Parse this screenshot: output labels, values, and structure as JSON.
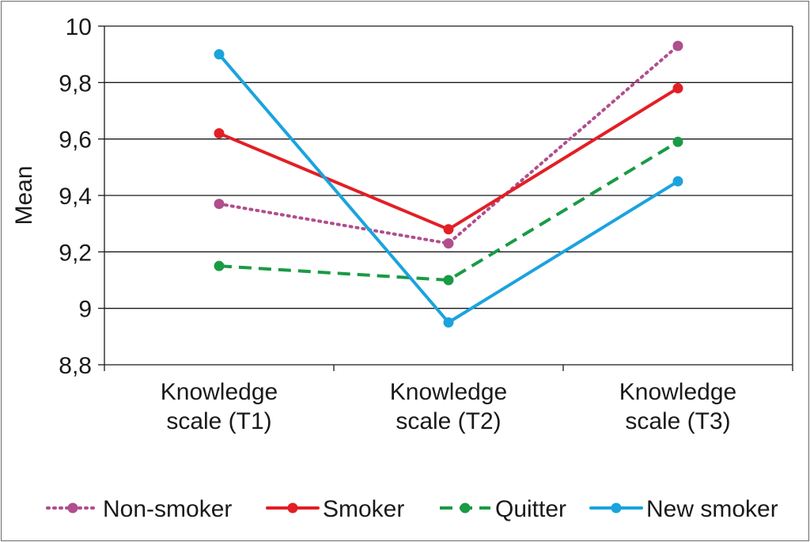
{
  "chart_data": {
    "type": "line",
    "categories": [
      [
        "Knowledge",
        "scale (T1)"
      ],
      [
        "Knowledge",
        "scale (T2)"
      ],
      [
        "Knowledge",
        "scale (T3)"
      ]
    ],
    "ylabel": "Mean",
    "xlabel": "",
    "title": "",
    "ylim": [
      8.8,
      10
    ],
    "yticks": [
      "8,8",
      "9",
      "9,2",
      "9,4",
      "9,6",
      "9,8",
      "10"
    ],
    "ytick_values": [
      8.8,
      9.0,
      9.2,
      9.4,
      9.6,
      9.8,
      10.0
    ],
    "grid": "horizontal",
    "legend_position": "bottom",
    "series": [
      {
        "name": "Non-smoker",
        "values": [
          9.37,
          9.23,
          9.93
        ],
        "color": "#b04e8e",
        "dash": "dotted"
      },
      {
        "name": "Smoker",
        "values": [
          9.62,
          9.28,
          9.78
        ],
        "color": "#e21f26",
        "dash": "solid"
      },
      {
        "name": "Quitter",
        "values": [
          9.15,
          9.1,
          9.59
        ],
        "color": "#1a9a45",
        "dash": "dashed"
      },
      {
        "name": "New smoker",
        "values": [
          9.9,
          8.95,
          9.45
        ],
        "color": "#1ba3dd",
        "dash": "solid"
      }
    ]
  }
}
